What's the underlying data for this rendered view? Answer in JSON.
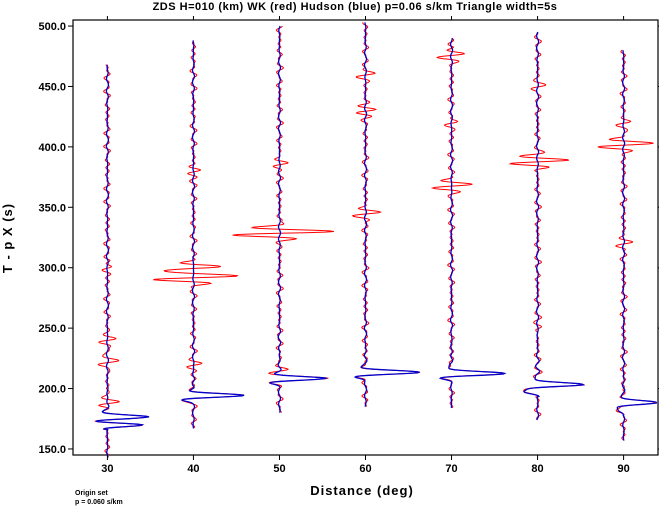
{
  "chart_data": {
    "type": "line",
    "title": "ZDS H=010 (km) WK (red) Hudson (blue) p=0.06 s/km Triangle width=5s",
    "xlabel": "Distance (deg)",
    "ylabel": "T - p X (s)",
    "xlim": [
      26,
      94
    ],
    "ylim": [
      145,
      505
    ],
    "xticks": [
      {
        "value": 30,
        "label": "30"
      },
      {
        "value": 40,
        "label": "40"
      },
      {
        "value": 50,
        "label": "50"
      },
      {
        "value": 60,
        "label": "60"
      },
      {
        "value": 70,
        "label": "70"
      },
      {
        "value": 80,
        "label": "80"
      },
      {
        "value": 90,
        "label": "90"
      }
    ],
    "yticks": [
      {
        "value": 150,
        "label": "150.0"
      },
      {
        "value": 200,
        "label": "200.0"
      },
      {
        "value": 250,
        "label": "250.0"
      },
      {
        "value": 300,
        "label": "300.0"
      },
      {
        "value": 350,
        "label": "350.0"
      },
      {
        "value": 400,
        "label": "400.0"
      },
      {
        "value": 450,
        "label": "450.0"
      },
      {
        "value": 500,
        "label": "500.0"
      }
    ],
    "series": [
      {
        "name": "WK",
        "color": "#ff0000"
      },
      {
        "name": "Hudson",
        "color": "#0000cc"
      }
    ],
    "traces": [
      {
        "distance": 30,
        "t_start": 143,
        "t_end": 468,
        "p_arrival": 176,
        "p_amp": 4.6,
        "p_offset": 22,
        "red_bursts": [
          {
            "t": 188,
            "amp": 1.6
          },
          {
            "t": 222,
            "amp": 1.3
          },
          {
            "t": 240,
            "amp": 1.1
          },
          {
            "t": 300,
            "amp": 0.5
          }
        ]
      },
      {
        "distance": 40,
        "t_start": 167,
        "t_end": 488,
        "p_arrival": 194,
        "p_amp": 6.0,
        "p_offset": 0,
        "red_bursts": [
          {
            "t": 292,
            "amp": 5.3
          },
          {
            "t": 300,
            "amp": 3.2
          },
          {
            "t": 380,
            "amp": 0.9
          },
          {
            "t": 220,
            "amp": 0.8
          }
        ]
      },
      {
        "distance": 50,
        "t_start": 180,
        "t_end": 500,
        "p_arrival": 208,
        "p_amp": 5.4,
        "p_offset": 0,
        "red_bursts": [
          {
            "t": 329,
            "amp": 6.6
          },
          {
            "t": 386,
            "amp": 1.1
          },
          {
            "t": 215,
            "amp": 1.0
          }
        ]
      },
      {
        "distance": 60,
        "t_start": 185,
        "t_end": 503,
        "p_arrival": 213,
        "p_amp": 6.5,
        "p_offset": 0,
        "red_bursts": [
          {
            "t": 345,
            "amp": 1.5
          },
          {
            "t": 430,
            "amp": 1.3
          },
          {
            "t": 460,
            "amp": 1.1
          }
        ]
      },
      {
        "distance": 70,
        "t_start": 184,
        "t_end": 490,
        "p_arrival": 212,
        "p_amp": 6.6,
        "p_offset": 0,
        "red_bursts": [
          {
            "t": 368,
            "amp": 2.5
          },
          {
            "t": 476,
            "amp": 1.5
          },
          {
            "t": 420,
            "amp": 0.9
          }
        ]
      },
      {
        "distance": 80,
        "t_start": 174,
        "t_end": 495,
        "p_arrival": 203,
        "p_amp": 5.6,
        "p_offset": -6,
        "red_bursts": [
          {
            "t": 388,
            "amp": 4.0
          },
          {
            "t": 450,
            "amp": 0.9
          },
          {
            "t": 250,
            "amp": 0.6
          }
        ]
      },
      {
        "distance": 90,
        "t_start": 157,
        "t_end": 480,
        "p_arrival": 188,
        "p_amp": 4.1,
        "p_offset": -3,
        "red_bursts": [
          {
            "t": 402,
            "amp": 3.4
          },
          {
            "t": 420,
            "amp": 1.0
          },
          {
            "t": 320,
            "amp": 0.7
          }
        ]
      }
    ]
  },
  "footer": {
    "line1": "Origin set",
    "line2": "p = 0.060 s/km"
  }
}
